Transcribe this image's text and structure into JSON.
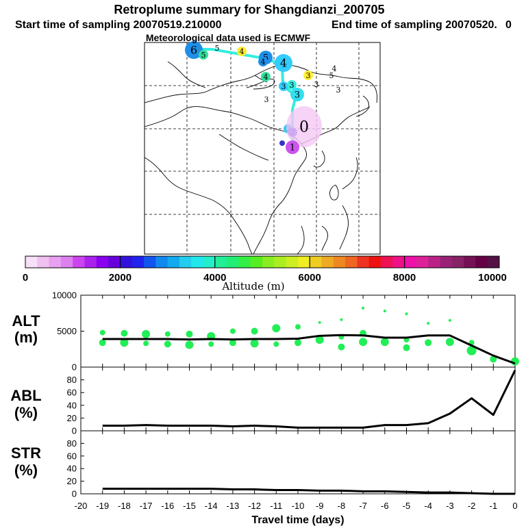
{
  "header": {
    "title": "Retroplume summary for Shangdianzi_200705",
    "start_label": "Start time of sampling 20070519.210000",
    "end_label": "End time of sampling 20070520.",
    "end_suffix": "0",
    "met_label": "Meteorological data used is ECMWF"
  },
  "map": {
    "track_color": "#33eedd",
    "clusters": [
      {
        "label": "6",
        "color": "#1f8fe6",
        "size": "large"
      },
      {
        "label": "5",
        "color": "#33dd99",
        "size": "small"
      },
      {
        "label": "5",
        "color": "#ffffff",
        "size": "text"
      },
      {
        "label": "4",
        "color": "#ffee33",
        "size": "small"
      },
      {
        "label": "5",
        "color": "#1f8fe6",
        "size": "medium"
      },
      {
        "label": "4",
        "color": "#1f8fe6",
        "size": "small"
      },
      {
        "label": "4",
        "color": "#33ccff",
        "size": "large"
      },
      {
        "label": "3",
        "color": "#ffee33",
        "size": "small"
      },
      {
        "label": "4",
        "color": "#ffffff",
        "size": "text"
      },
      {
        "label": "5",
        "color": "#ffffff",
        "size": "text"
      },
      {
        "label": "4",
        "color": "#33dd99",
        "size": "small"
      },
      {
        "label": "3",
        "color": "#33ccff",
        "size": "small"
      },
      {
        "label": "3",
        "color": "#33eedd",
        "size": "small"
      },
      {
        "label": "3",
        "color": "#33ddee",
        "size": "medium"
      },
      {
        "label": "3",
        "color": "#ffffff",
        "size": "text"
      },
      {
        "label": "3",
        "color": "#ffffff",
        "size": "text"
      },
      {
        "label": "3",
        "color": "#ffffff",
        "size": "text"
      },
      {
        "label": "2",
        "color": "#33ccff",
        "size": "small"
      },
      {
        "label": "2",
        "color": "#4444ff",
        "size": "small"
      },
      {
        "label": "0",
        "color": "#f5c8f5",
        "size": "plume"
      },
      {
        "label": "1",
        "color": "#cc55ee",
        "size": "medium"
      },
      {
        "label": "",
        "color": "#3333cc",
        "size": "dot"
      }
    ]
  },
  "colorbar": {
    "ticks": [
      "0",
      "2000",
      "4000",
      "6000",
      "8000",
      "10000"
    ],
    "label": "Altitude (m)",
    "colors": [
      "#f8e0f8",
      "#f0c0f0",
      "#e8a0f0",
      "#dd80f0",
      "#cc44ee",
      "#aa22ee",
      "#8800ee",
      "#6600dd",
      "#3311dd",
      "#2222ee",
      "#1155ee",
      "#1188ee",
      "#11aaee",
      "#22ccee",
      "#22e8ee",
      "#22eecc",
      "#22ee99",
      "#22ee77",
      "#33ee44",
      "#55ee22",
      "#88ee22",
      "#aaee22",
      "#ccee22",
      "#eeee22",
      "#eecc22",
      "#eeaa22",
      "#ee8822",
      "#ee6622",
      "#ee3322",
      "#ee1111",
      "#ee1155",
      "#ee1188",
      "#ee11aa",
      "#dd2299",
      "#bb2288",
      "#992277",
      "#882266",
      "#771155",
      "#660044",
      "#551144"
    ]
  },
  "chart_data": [
    {
      "type": "line",
      "panel": "ALT",
      "ylabel": "ALT\n(m)",
      "ylabel_lines": [
        "ALT",
        "(m)"
      ],
      "ylim": [
        0,
        10000
      ],
      "yticks": [
        "0",
        "5000",
        "10000"
      ],
      "x": [
        -19,
        -18,
        -17,
        -16,
        -15,
        -14,
        -13,
        -12,
        -11,
        -10,
        -9,
        -8,
        -7,
        -6,
        -5,
        -4,
        -3,
        -2,
        -1,
        0
      ],
      "series": [
        {
          "name": "mean altitude",
          "color": "#000000",
          "values": [
            3900,
            3900,
            3900,
            3900,
            3850,
            3900,
            3850,
            3900,
            3900,
            3950,
            4350,
            4450,
            4400,
            4100,
            4100,
            4400,
            4400,
            3000,
            1600,
            500
          ]
        }
      ],
      "scatter": [
        {
          "x": -19,
          "values": [
            4800,
            3400
          ]
        },
        {
          "x": -18,
          "values": [
            4700,
            3400
          ]
        },
        {
          "x": -17,
          "values": [
            4600,
            3300
          ]
        },
        {
          "x": -16,
          "values": [
            4600,
            3200
          ]
        },
        {
          "x": -15,
          "values": [
            4600,
            3100
          ]
        },
        {
          "x": -14,
          "values": [
            4300,
            3200
          ]
        },
        {
          "x": -13,
          "values": [
            5000,
            3400
          ]
        },
        {
          "x": -12,
          "values": [
            5000,
            3300
          ]
        },
        {
          "x": -11,
          "values": [
            5400,
            3200
          ]
        },
        {
          "x": -10,
          "values": [
            5600,
            3400
          ]
        },
        {
          "x": -9,
          "values": [
            6200,
            3800
          ]
        },
        {
          "x": -8,
          "values": [
            6600,
            4200,
            2800
          ]
        },
        {
          "x": -7,
          "values": [
            8200,
            4700,
            3500
          ]
        },
        {
          "x": -6,
          "values": [
            7800,
            3500
          ]
        },
        {
          "x": -5,
          "values": [
            7400,
            3800,
            2700
          ]
        },
        {
          "x": -4,
          "values": [
            6100,
            3400
          ]
        },
        {
          "x": -3,
          "values": [
            6500,
            3500
          ]
        },
        {
          "x": -2,
          "values": [
            2300,
            3400
          ]
        },
        {
          "x": -1,
          "values": [
            1100
          ]
        },
        {
          "x": 0,
          "values": [
            800
          ]
        }
      ],
      "scatter_color": "#22ee55"
    },
    {
      "type": "line",
      "panel": "ABL",
      "ylabel_lines": [
        "ABL",
        "(%)"
      ],
      "ylim": [
        0,
        100
      ],
      "yticks": [
        "0",
        "20",
        "40",
        "60",
        "80"
      ],
      "x": [
        -19,
        -18,
        -17,
        -16,
        -15,
        -14,
        -13,
        -12,
        -11,
        -10,
        -9,
        -8,
        -7,
        -6,
        -5,
        -4,
        -3,
        -2,
        -1,
        0
      ],
      "series": [
        {
          "name": "ABL fraction",
          "color": "#000000",
          "values": [
            8,
            8,
            9,
            8,
            8,
            8,
            7,
            8,
            7,
            5,
            5,
            5,
            5,
            9,
            9,
            12,
            27,
            51,
            25,
            95
          ]
        }
      ]
    },
    {
      "type": "line",
      "panel": "STR",
      "ylabel_lines": [
        "STR",
        "(%)"
      ],
      "ylim": [
        0,
        100
      ],
      "yticks": [
        "0",
        "20",
        "40",
        "60",
        "80"
      ],
      "xlabel": "Travel time (days)",
      "xticks": [
        "-20",
        "-19",
        "-18",
        "-17",
        "-16",
        "-15",
        "-14",
        "-13",
        "-12",
        "-11",
        "-10",
        "-9",
        "-8",
        "-7",
        "-6",
        "-5",
        "-4",
        "-3",
        "-2",
        "-1",
        "0"
      ],
      "x": [
        -19,
        -18,
        -17,
        -16,
        -15,
        -14,
        -13,
        -12,
        -11,
        -10,
        -9,
        -8,
        -7,
        -6,
        -5,
        -4,
        -3,
        -2,
        -1,
        0
      ],
      "series": [
        {
          "name": "STR fraction",
          "color": "#000000",
          "values": [
            8,
            8,
            8,
            8,
            8,
            8,
            7,
            7,
            6,
            6,
            5,
            5,
            4,
            4,
            3,
            2,
            2,
            1,
            0,
            0
          ]
        }
      ]
    }
  ]
}
